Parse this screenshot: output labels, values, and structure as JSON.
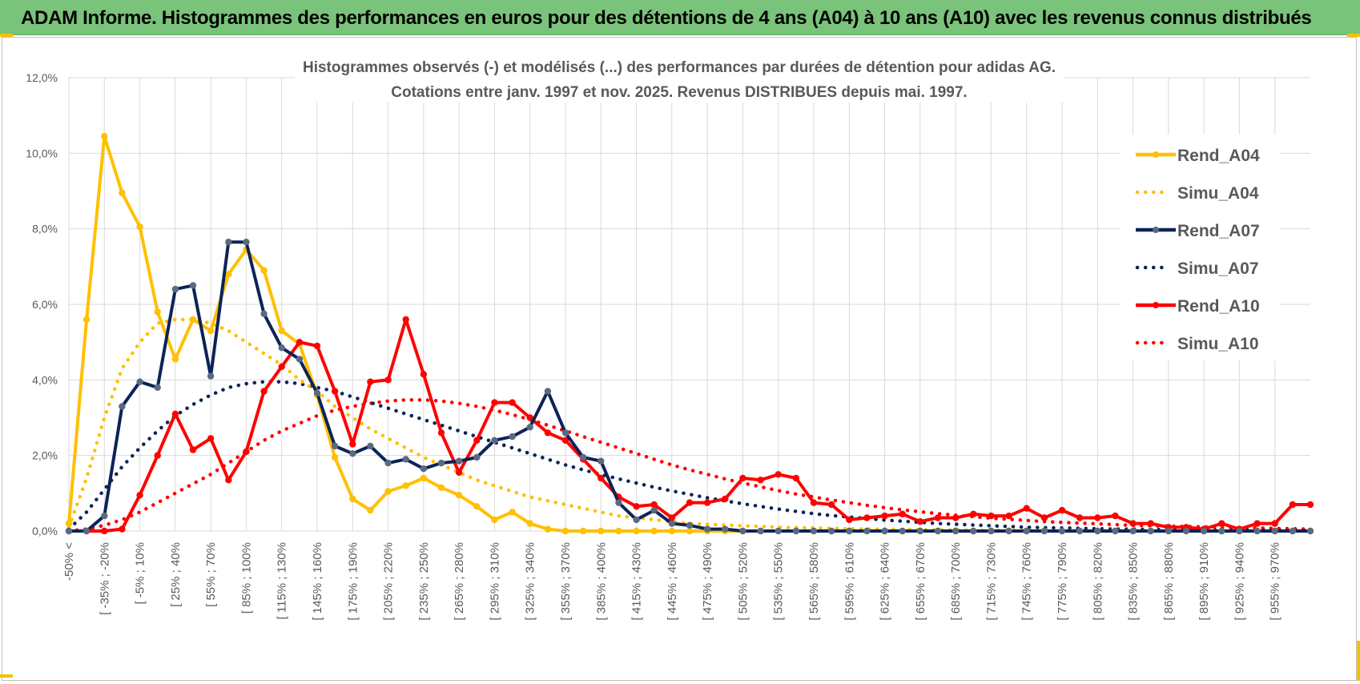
{
  "banner": {
    "title": "ADAM Informe. Histogrammes des performances en euros pour des détentions de 4 ans (A04) à 10 ans (A10) avec les revenus connus distribués"
  },
  "colors": {
    "banner_bg": "#7ac37a",
    "a04": "#ffc000",
    "a07": "#0d2357",
    "a10": "#ff0000",
    "grid": "#d9d9d9",
    "marker_a07": "#5a6a80"
  },
  "chart_data": {
    "type": "line",
    "title_line1": "Histogrammes observés (-) et modélisés (...) des performances par durées de détention pour adidas AG.",
    "title_line2": "Cotations entre janv. 1997 et nov. 2025. Revenus DISTRIBUES depuis mai. 1997.",
    "ylim": [
      0,
      12
    ],
    "yticks": [
      "0,0%",
      "2,0%",
      "4,0%",
      "6,0%",
      "8,0%",
      "10,0%",
      "12,0%"
    ],
    "x_tick_labels": [
      "-50% <",
      "[ -35% ; -20%",
      "[ -5% ; 10%",
      "[ 25% ; 40%",
      "[ 55% ; 70%",
      "[ 85% ; 100%",
      "[ 115% ; 130%",
      "[ 145% ; 160%",
      "[ 175% ; 190%",
      "[ 205% ; 220%",
      "[ 235% ; 250%",
      "[ 265% ; 280%",
      "[ 295% ; 310%",
      "[ 325% ; 340%",
      "[ 355% ; 370%",
      "[ 385% ; 400%",
      "[ 415% ; 430%",
      "[ 445% ; 460%",
      "[ 475% ; 490%",
      "[ 505% ; 520%",
      "[ 535% ; 550%",
      "[ 565% ; 580%",
      "[ 595% ; 610%",
      "[ 625% ; 640%",
      "[ 655% ; 670%",
      "[ 685% ; 700%",
      "[ 715% ; 730%",
      "[ 745% ; 760%",
      "[ 775% ; 790%",
      "[ 805% ; 820%",
      "[ 835% ; 850%",
      "[ 865% ; 880%",
      "[ 895% ; 910%",
      "[ 925% ; 940%",
      "[ 955% ; 970%"
    ],
    "n_bins": 71,
    "series": [
      {
        "name": "Rend_A04",
        "style": "solid",
        "color_key": "a04",
        "values": [
          0.2,
          5.6,
          10.45,
          8.95,
          8.05,
          5.8,
          4.55,
          5.6,
          5.3,
          6.8,
          7.45,
          6.9,
          5.3,
          4.95,
          3.6,
          1.95,
          0.85,
          0.55,
          1.05,
          1.2,
          1.4,
          1.15,
          0.95,
          0.65,
          0.3,
          0.5,
          0.2,
          0.05,
          0.0,
          0.0,
          0.0,
          0.0,
          0.0,
          0.0,
          0.0,
          0.0,
          0.0,
          0.0,
          0.0,
          0.0,
          0.0,
          0.0,
          0.0,
          0.0,
          0.0,
          0.0,
          0.0,
          0.0,
          0.0,
          0.0,
          0.0,
          0.0,
          0.0,
          0.0,
          0.0,
          0.0,
          0.0,
          0.0,
          0.0,
          0.0,
          0.0,
          0.0,
          0.0,
          0.0,
          0.0,
          0.0,
          0.0,
          0.0,
          0.0,
          0.0,
          0.0
        ]
      },
      {
        "name": "Simu_A04",
        "style": "dotted",
        "color_key": "a04",
        "values": [
          0.1,
          1.4,
          3.0,
          4.3,
          5.0,
          5.5,
          5.6,
          5.6,
          5.5,
          5.3,
          5.0,
          4.7,
          4.4,
          4.0,
          3.7,
          3.3,
          3.0,
          2.7,
          2.45,
          2.2,
          1.95,
          1.75,
          1.55,
          1.35,
          1.2,
          1.05,
          0.9,
          0.8,
          0.7,
          0.6,
          0.5,
          0.4,
          0.35,
          0.3,
          0.25,
          0.2,
          0.18,
          0.16,
          0.14,
          0.12,
          0.1,
          0.09,
          0.08,
          0.07,
          0.06,
          0.05,
          0.05,
          0.04,
          0.04,
          0.03,
          0.03,
          0.02,
          0.02,
          0.02,
          0.02,
          0.01,
          0.01,
          0.01,
          0.01,
          0.01,
          0.01,
          0.01,
          0.0,
          0.0,
          0.0,
          0.0,
          0.0,
          0.0,
          0.0,
          0.0,
          0.0
        ]
      },
      {
        "name": "Rend_A07",
        "style": "solid",
        "color_key": "a07",
        "values": [
          0.0,
          0.0,
          0.4,
          3.3,
          3.95,
          3.8,
          6.4,
          6.5,
          4.1,
          7.65,
          7.65,
          5.75,
          4.85,
          4.55,
          3.65,
          2.25,
          2.05,
          2.25,
          1.8,
          1.9,
          1.65,
          1.8,
          1.85,
          1.95,
          2.4,
          2.5,
          2.75,
          3.7,
          2.6,
          1.95,
          1.85,
          0.75,
          0.3,
          0.55,
          0.2,
          0.15,
          0.05,
          0.05,
          0.0,
          0.0,
          0.0,
          0.0,
          0.0,
          0.0,
          0.0,
          0.0,
          0.0,
          0.0,
          0.0,
          0.0,
          0.0,
          0.0,
          0.0,
          0.0,
          0.0,
          0.0,
          0.0,
          0.0,
          0.0,
          0.0,
          0.0,
          0.0,
          0.0,
          0.0,
          0.0,
          0.0,
          0.0,
          0.0,
          0.0,
          0.0,
          0.0
        ]
      },
      {
        "name": "Simu_A07",
        "style": "dotted",
        "color_key": "a07",
        "values": [
          0.05,
          0.5,
          1.1,
          1.7,
          2.2,
          2.65,
          3.05,
          3.35,
          3.6,
          3.8,
          3.9,
          3.95,
          3.95,
          3.9,
          3.8,
          3.7,
          3.55,
          3.4,
          3.25,
          3.1,
          2.95,
          2.8,
          2.65,
          2.5,
          2.35,
          2.2,
          2.05,
          1.9,
          1.75,
          1.62,
          1.5,
          1.38,
          1.27,
          1.16,
          1.06,
          0.97,
          0.88,
          0.8,
          0.72,
          0.65,
          0.58,
          0.52,
          0.46,
          0.41,
          0.37,
          0.33,
          0.29,
          0.26,
          0.23,
          0.2,
          0.18,
          0.16,
          0.14,
          0.12,
          0.1,
          0.09,
          0.08,
          0.07,
          0.06,
          0.05,
          0.05,
          0.04,
          0.04,
          0.03,
          0.03,
          0.02,
          0.02,
          0.02,
          0.02,
          0.01,
          0.01
        ]
      },
      {
        "name": "Rend_A10",
        "style": "solid",
        "color_key": "a10",
        "values": [
          0.0,
          0.0,
          0.0,
          0.05,
          0.95,
          2.0,
          3.1,
          2.15,
          2.45,
          1.35,
          2.1,
          3.7,
          4.35,
          5.0,
          4.9,
          3.7,
          2.3,
          3.95,
          4.0,
          5.6,
          4.15,
          2.6,
          1.55,
          2.4,
          3.4,
          3.4,
          3.0,
          2.6,
          2.4,
          1.9,
          1.4,
          0.9,
          0.65,
          0.7,
          0.35,
          0.75,
          0.75,
          0.85,
          1.4,
          1.35,
          1.5,
          1.4,
          0.75,
          0.7,
          0.3,
          0.35,
          0.4,
          0.45,
          0.25,
          0.35,
          0.35,
          0.45,
          0.4,
          0.4,
          0.6,
          0.35,
          0.55,
          0.35,
          0.35,
          0.4,
          0.2,
          0.2,
          0.1,
          0.1,
          0.05,
          0.2,
          0.05,
          0.2,
          0.2,
          0.7,
          0.7
        ]
      },
      {
        "name": "Simu_A10",
        "style": "dotted",
        "color_key": "a10",
        "values": [
          0.0,
          0.05,
          0.15,
          0.3,
          0.5,
          0.75,
          1.0,
          1.25,
          1.5,
          1.8,
          2.1,
          2.4,
          2.65,
          2.85,
          3.05,
          3.2,
          3.3,
          3.38,
          3.44,
          3.47,
          3.47,
          3.44,
          3.38,
          3.3,
          3.2,
          3.08,
          2.95,
          2.8,
          2.65,
          2.5,
          2.35,
          2.2,
          2.05,
          1.9,
          1.75,
          1.62,
          1.5,
          1.38,
          1.27,
          1.17,
          1.07,
          0.98,
          0.9,
          0.82,
          0.75,
          0.68,
          0.62,
          0.56,
          0.51,
          0.46,
          0.42,
          0.38,
          0.34,
          0.31,
          0.28,
          0.25,
          0.23,
          0.21,
          0.19,
          0.17,
          0.15,
          0.14,
          0.13,
          0.12,
          0.11,
          0.1,
          0.09,
          0.08,
          0.07,
          0.06,
          0.05
        ]
      }
    ],
    "legend_position": "top-right",
    "grid": true
  }
}
